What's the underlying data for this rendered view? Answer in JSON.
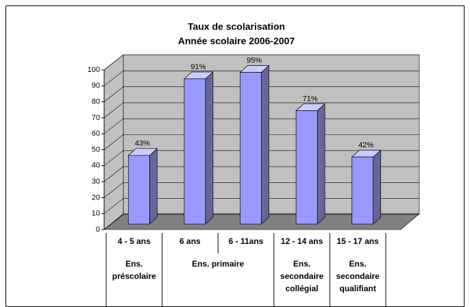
{
  "chart_data": {
    "type": "bar3d",
    "title": [
      "Taux de scolarisation",
      "Année scolaire 2006-2007"
    ],
    "categories": [
      "4 - 5 ans",
      "6 ans",
      "6 - 11ans",
      "12 - 14 ans",
      "15 - 17 ans"
    ],
    "groups": [
      {
        "label": "Ens. préscolaire",
        "categories": [
          "4 - 5 ans"
        ]
      },
      {
        "label": "Ens. primaire",
        "categories": [
          "6 ans",
          "6 - 11ans"
        ]
      },
      {
        "label": "Ens. secondaire collégial",
        "categories": [
          "12 - 14 ans"
        ]
      },
      {
        "label": "Ens. secondaire qualifiant",
        "categories": [
          "15 - 17 ans"
        ]
      }
    ],
    "values": [
      43,
      91,
      95,
      71,
      42
    ],
    "value_labels": [
      "43%",
      "91%",
      "95%",
      "71%",
      "42%"
    ],
    "color": "#9999ff",
    "ylim": [
      0,
      100
    ],
    "yticks": [
      0,
      10,
      20,
      30,
      40,
      50,
      60,
      70,
      80,
      90,
      100
    ],
    "grid": true
  }
}
